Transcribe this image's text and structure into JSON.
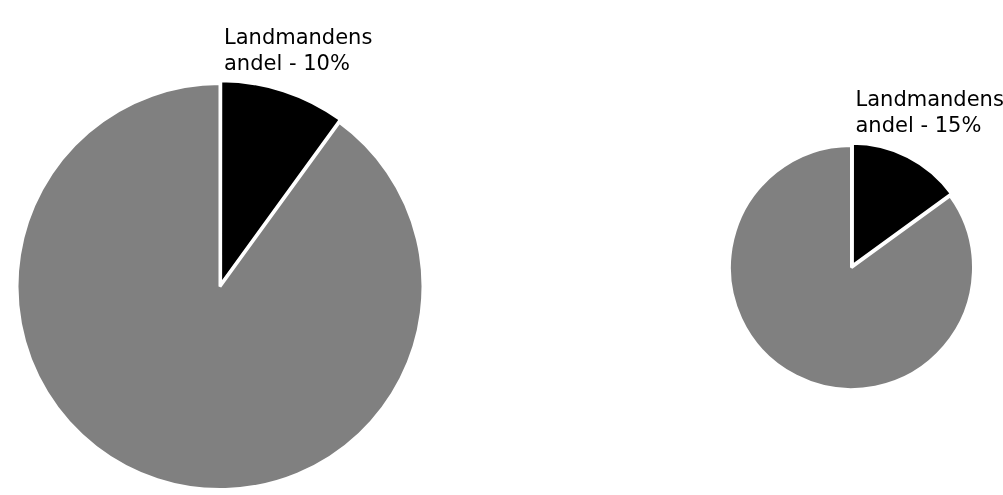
{
  "chart_data": [
    {
      "type": "pie",
      "categories": [
        "Landmandens andel - 10%",
        null
      ],
      "values": [
        10,
        90
      ],
      "colors": [
        "#000000",
        "#808080"
      ]
    },
    {
      "type": "pie",
      "categories": [
        "Landmandens andel - 15%",
        null
      ],
      "values": [
        15,
        85
      ],
      "colors": [
        "#000000",
        "#808080"
      ]
    }
  ]
}
